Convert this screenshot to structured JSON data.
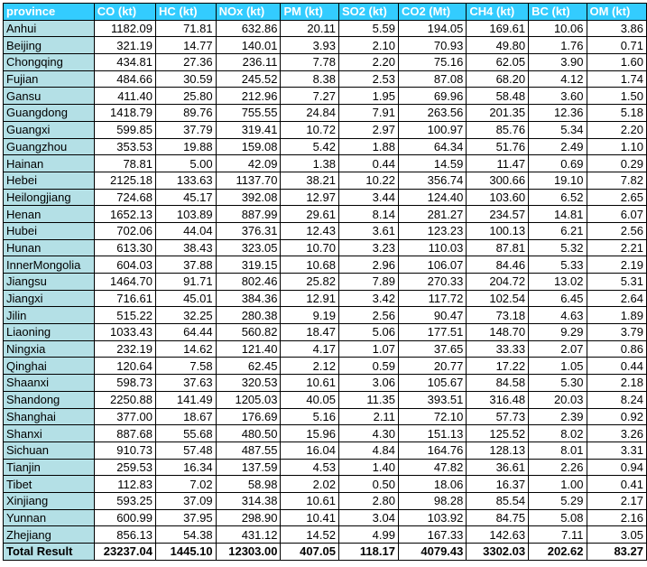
{
  "table": {
    "header_color": "#33ccff",
    "province_column_color": "#b4e0e6",
    "columns": [
      "province",
      "CO (kt)",
      "HC (kt)",
      "NOx (kt)",
      "PM (kt)",
      "SO2 (kt)",
      "CO2 (Mt)",
      "CH4 (kt)",
      "BC (kt)",
      "OM (kt)"
    ],
    "rows": [
      [
        "Anhui",
        "1182.09",
        "71.81",
        "632.86",
        "20.11",
        "5.59",
        "194.05",
        "169.61",
        "10.06",
        "3.86"
      ],
      [
        "Beijing",
        "321.19",
        "14.77",
        "140.01",
        "3.93",
        "2.10",
        "70.93",
        "49.80",
        "1.76",
        "0.71"
      ],
      [
        "Chongqing",
        "434.81",
        "27.36",
        "236.11",
        "7.78",
        "2.20",
        "75.16",
        "62.05",
        "3.90",
        "1.60"
      ],
      [
        "Fujian",
        "484.66",
        "30.59",
        "245.52",
        "8.38",
        "2.53",
        "87.08",
        "68.20",
        "4.12",
        "1.74"
      ],
      [
        "Gansu",
        "411.40",
        "25.80",
        "212.96",
        "7.27",
        "1.95",
        "69.96",
        "58.48",
        "3.60",
        "1.50"
      ],
      [
        "Guangdong",
        "1418.79",
        "89.76",
        "755.55",
        "24.84",
        "7.91",
        "263.56",
        "201.35",
        "12.36",
        "5.18"
      ],
      [
        "Guangxi",
        "599.85",
        "37.79",
        "319.41",
        "10.72",
        "2.97",
        "100.97",
        "85.76",
        "5.34",
        "2.20"
      ],
      [
        "Guangzhou",
        "353.53",
        "19.88",
        "159.08",
        "5.42",
        "1.88",
        "64.34",
        "51.76",
        "2.49",
        "1.10"
      ],
      [
        "Hainan",
        "78.81",
        "5.00",
        "42.09",
        "1.38",
        "0.44",
        "14.59",
        "11.47",
        "0.69",
        "0.29"
      ],
      [
        "Hebei",
        "2125.18",
        "133.63",
        "1137.70",
        "38.21",
        "10.22",
        "356.74",
        "300.66",
        "19.10",
        "7.82"
      ],
      [
        "Heilongjiang",
        "724.68",
        "45.17",
        "392.08",
        "12.97",
        "3.44",
        "124.40",
        "103.60",
        "6.52",
        "2.65"
      ],
      [
        "Henan",
        "1652.13",
        "103.89",
        "887.99",
        "29.61",
        "8.14",
        "281.27",
        "234.57",
        "14.81",
        "6.07"
      ],
      [
        "Hubei",
        "702.06",
        "44.04",
        "376.31",
        "12.43",
        "3.61",
        "123.23",
        "100.13",
        "6.21",
        "2.56"
      ],
      [
        "Hunan",
        "613.30",
        "38.43",
        "323.05",
        "10.70",
        "3.23",
        "110.03",
        "87.81",
        "5.32",
        "2.21"
      ],
      [
        "InnerMongolia",
        "604.03",
        "37.88",
        "319.15",
        "10.68",
        "2.96",
        "106.07",
        "84.46",
        "5.33",
        "2.19"
      ],
      [
        "Jiangsu",
        "1464.70",
        "91.71",
        "802.46",
        "25.82",
        "7.89",
        "270.33",
        "204.72",
        "13.02",
        "5.31"
      ],
      [
        "Jiangxi",
        "716.61",
        "45.01",
        "384.36",
        "12.91",
        "3.42",
        "117.72",
        "102.54",
        "6.45",
        "2.64"
      ],
      [
        "Jilin",
        "515.22",
        "32.25",
        "280.38",
        "9.19",
        "2.56",
        "90.47",
        "73.18",
        "4.63",
        "1.89"
      ],
      [
        "Liaoning",
        "1033.43",
        "64.44",
        "560.82",
        "18.47",
        "5.06",
        "177.51",
        "148.70",
        "9.29",
        "3.79"
      ],
      [
        "Ningxia",
        "232.19",
        "14.62",
        "121.40",
        "4.17",
        "1.07",
        "37.65",
        "33.33",
        "2.07",
        "0.86"
      ],
      [
        "Qinghai",
        "120.64",
        "7.58",
        "62.45",
        "2.12",
        "0.59",
        "20.77",
        "17.22",
        "1.05",
        "0.44"
      ],
      [
        "Shaanxi",
        "598.73",
        "37.63",
        "320.53",
        "10.61",
        "3.06",
        "105.67",
        "84.58",
        "5.30",
        "2.18"
      ],
      [
        "Shandong",
        "2250.88",
        "141.49",
        "1205.03",
        "40.05",
        "11.35",
        "393.51",
        "316.48",
        "20.03",
        "8.24"
      ],
      [
        "Shanghai",
        "377.00",
        "18.67",
        "176.69",
        "5.16",
        "2.11",
        "72.10",
        "57.73",
        "2.39",
        "0.92"
      ],
      [
        "Shanxi",
        "887.68",
        "55.68",
        "480.50",
        "15.96",
        "4.30",
        "151.13",
        "125.52",
        "8.02",
        "3.26"
      ],
      [
        "Sichuan",
        "910.73",
        "57.48",
        "487.55",
        "16.04",
        "4.84",
        "164.76",
        "128.13",
        "8.01",
        "3.31"
      ],
      [
        "Tianjin",
        "259.53",
        "16.34",
        "137.59",
        "4.53",
        "1.40",
        "47.82",
        "36.61",
        "2.26",
        "0.94"
      ],
      [
        "Tibet",
        "112.83",
        "7.02",
        "58.98",
        "2.02",
        "0.50",
        "18.06",
        "16.37",
        "1.00",
        "0.41"
      ],
      [
        "Xinjiang",
        "593.25",
        "37.09",
        "314.38",
        "10.61",
        "2.80",
        "98.28",
        "85.54",
        "5.29",
        "2.17"
      ],
      [
        "Yunnan",
        "600.99",
        "37.95",
        "298.90",
        "10.41",
        "3.04",
        "103.92",
        "84.75",
        "5.08",
        "2.16"
      ],
      [
        "Zhejiang",
        "856.13",
        "54.38",
        "431.12",
        "14.52",
        "4.99",
        "167.33",
        "142.63",
        "7.11",
        "3.05"
      ]
    ],
    "total": [
      "Total Result",
      "23237.04",
      "1445.10",
      "12303.00",
      "407.05",
      "118.17",
      "4079.43",
      "3302.03",
      "202.62",
      "83.27"
    ]
  }
}
